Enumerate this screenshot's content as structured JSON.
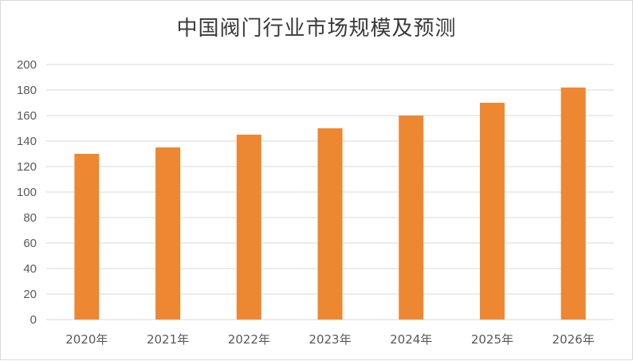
{
  "chart_data": {
    "type": "bar",
    "title": "中国阀门行业市场规模及预测",
    "categories": [
      "2020年",
      "2021年",
      "2022年",
      "2023年",
      "2024年",
      "2025年",
      "2026年"
    ],
    "values": [
      130,
      135,
      145,
      150,
      160,
      170,
      182
    ],
    "ylim": [
      0,
      200
    ],
    "yticks": [
      0,
      20,
      40,
      60,
      80,
      100,
      120,
      140,
      160,
      180,
      200
    ],
    "xlabel": "",
    "ylabel": "",
    "grid": true,
    "legend": "none",
    "bar_color": "#ed8732",
    "grid_color": "#d9d9d9"
  }
}
